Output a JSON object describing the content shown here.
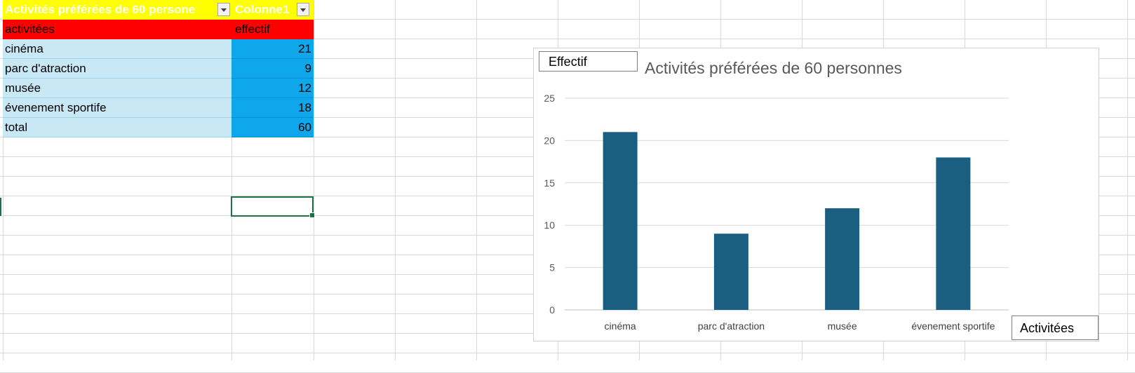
{
  "table": {
    "header": {
      "col1": "Activités préférées de 60 persone",
      "col2": "Colonne1"
    },
    "subheader": {
      "col1": "activitées",
      "col2": "effectif"
    },
    "rows": [
      {
        "label": "cinéma",
        "value": "21"
      },
      {
        "label": "parc d'atraction",
        "value": "9"
      },
      {
        "label": "musée",
        "value": "12"
      },
      {
        "label": "évenement sportife",
        "value": "18"
      },
      {
        "label": "total",
        "value": "60"
      }
    ]
  },
  "colors": {
    "header": "#ffff00",
    "subheader": "#ff0000",
    "row_label": "#c9e8f6",
    "row_value": "#0ea7ec",
    "bar": "#1a5e80"
  },
  "chart_data": {
    "type": "bar",
    "title": "Activités préférées de 60 personnes",
    "xlabel": "Activitées",
    "ylabel": "Effectif",
    "categories": [
      "cinéma",
      "parc d'atraction",
      "musée",
      "évenement sportife"
    ],
    "values": [
      21,
      9,
      12,
      18
    ],
    "ylim": [
      0,
      25
    ],
    "yticks": [
      0,
      5,
      10,
      15,
      20,
      25
    ],
    "grid": true,
    "legend": "none"
  }
}
